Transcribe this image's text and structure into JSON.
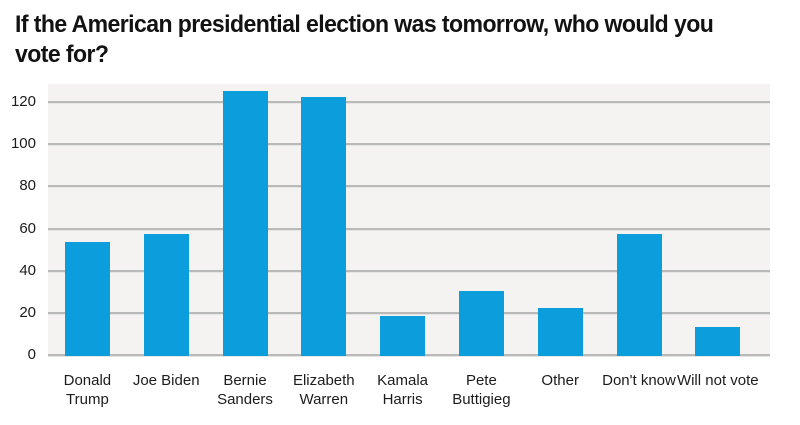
{
  "colors": {
    "bar": "#0c9ddd",
    "plot_background": "#f4f3f1",
    "gridline": "#b9b9b9",
    "text": "#1c1c1c",
    "title_text": "#121212",
    "page_background": "#ffffff"
  },
  "chart_data": {
    "type": "bar",
    "title": "If the American presidential election was tomorrow, who would you\nvote for?",
    "categories": [
      "Donald Trump",
      "Joe Biden",
      "Bernie Sanders",
      "Elizabeth Warren",
      "Kamala Harris",
      "Pete Buttigieg",
      "Other",
      "Don't know",
      "Will not vote"
    ],
    "values": [
      53,
      57,
      125,
      122,
      18,
      30,
      22,
      57,
      13
    ],
    "xlabel": "",
    "ylabel": "",
    "ylim": [
      0,
      128
    ],
    "yticks": [
      0,
      20,
      40,
      60,
      80,
      100,
      120
    ],
    "grid": "horizontal-only",
    "legend": "none",
    "bar_color": "#0c9ddd"
  }
}
